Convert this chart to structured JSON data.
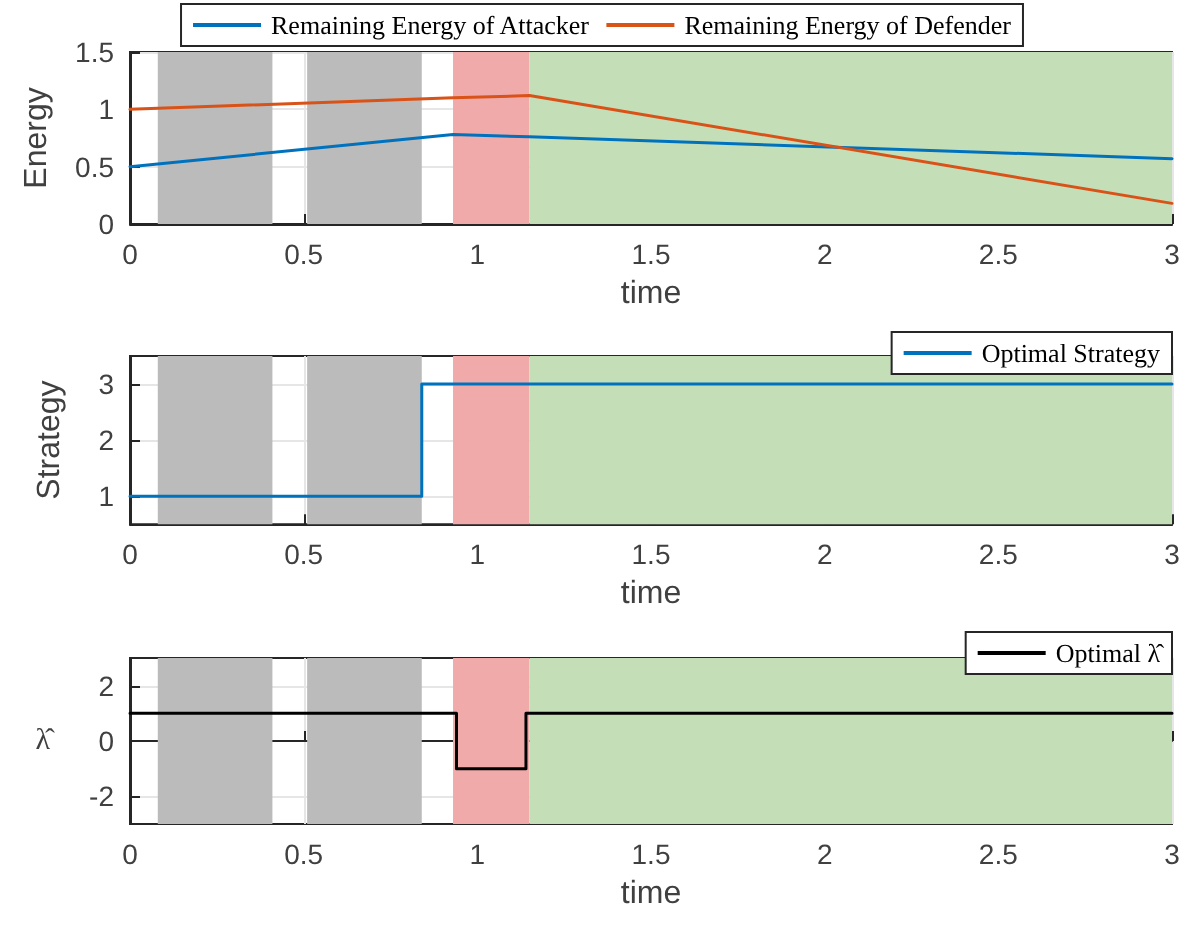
{
  "chart_data": [
    {
      "type": "line",
      "xlabel": "time",
      "ylabel": "Energy",
      "x": [
        0,
        0.93,
        1.15,
        3
      ],
      "series": [
        {
          "name": "Remaining Energy of Attacker",
          "color": "#0072bd",
          "values": [
            0.5,
            0.78,
            0.76,
            0.57
          ]
        },
        {
          "name": "Remaining Energy of Defender",
          "color": "#d95319",
          "values": [
            1.0,
            1.1,
            1.12,
            0.18
          ]
        }
      ],
      "xlim": [
        0,
        3
      ],
      "xticks": [
        0,
        0.5,
        1,
        1.5,
        2,
        2.5,
        3
      ],
      "ylim": [
        0,
        1.5
      ],
      "yticks": [
        0,
        0.5,
        1,
        1.5
      ],
      "bands": [
        {
          "axis": "x",
          "from": 0.08,
          "to": 0.41,
          "color": "#bbbbbb"
        },
        {
          "axis": "x",
          "from": 0.51,
          "to": 0.84,
          "color": "#bbbbbb"
        },
        {
          "axis": "x",
          "from": 0.93,
          "to": 1.15,
          "color": "#f0aaaa"
        },
        {
          "axis": "x",
          "from": 1.15,
          "to": 3,
          "color": "#c4dfb8"
        }
      ],
      "grid": true,
      "legend": "top"
    },
    {
      "type": "step",
      "xlabel": "time",
      "ylabel": "Strategy",
      "x": [
        0,
        0.84,
        3
      ],
      "series": [
        {
          "name": "Optimal Strategy",
          "color": "#0072bd",
          "values": [
            1,
            3,
            3
          ]
        }
      ],
      "xlim": [
        0,
        3
      ],
      "xticks": [
        0,
        0.5,
        1,
        1.5,
        2,
        2.5,
        3
      ],
      "ylim": [
        0.5,
        3.5
      ],
      "yticks": [
        1,
        2,
        3
      ],
      "bands": [
        {
          "axis": "x",
          "from": 0.08,
          "to": 0.41,
          "color": "#bbbbbb"
        },
        {
          "axis": "x",
          "from": 0.51,
          "to": 0.84,
          "color": "#bbbbbb"
        },
        {
          "axis": "x",
          "from": 0.93,
          "to": 1.15,
          "color": "#f0aaaa"
        },
        {
          "axis": "x",
          "from": 1.15,
          "to": 3,
          "color": "#c4dfb8"
        }
      ],
      "grid": true,
      "legend": "top right"
    },
    {
      "type": "step",
      "xlabel": "time",
      "ylabel": "λ̂",
      "x": [
        0,
        0.94,
        1.14,
        3
      ],
      "series": [
        {
          "name": "Optimal λ̂",
          "color": "#000000",
          "values": [
            1,
            -1,
            1,
            1
          ]
        }
      ],
      "xlim": [
        0,
        3
      ],
      "xticks": [
        0,
        0.5,
        1,
        1.5,
        2,
        2.5,
        3
      ],
      "ylim": [
        -3,
        3
      ],
      "yticks": [
        -2,
        0,
        2
      ],
      "bands": [
        {
          "axis": "x",
          "from": 0.08,
          "to": 0.41,
          "color": "#bbbbbb"
        },
        {
          "axis": "x",
          "from": 0.51,
          "to": 0.84,
          "color": "#bbbbbb"
        },
        {
          "axis": "x",
          "from": 0.93,
          "to": 1.15,
          "color": "#f0aaaa"
        },
        {
          "axis": "x",
          "from": 1.15,
          "to": 3,
          "color": "#c4dfb8"
        }
      ],
      "grid": true,
      "legend": "top right"
    }
  ]
}
